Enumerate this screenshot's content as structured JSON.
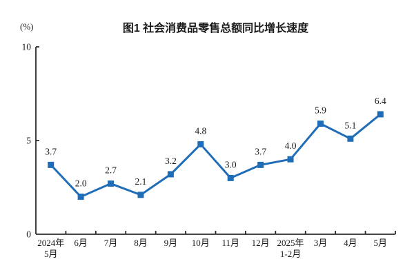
{
  "header": {
    "title": "图1 社会消费品零售总额同比增长速度",
    "unit_label": "(%)"
  },
  "chart_data": {
    "type": "line",
    "title": "图1 社会消费品零售总额同比增长速度",
    "ylabel": "(%)",
    "categories": [
      "2024年\n5月",
      "6月",
      "7月",
      "8月",
      "9月",
      "10月",
      "11月",
      "12月",
      "2025年\n1-2月",
      "3月",
      "4月",
      "5月"
    ],
    "values": [
      3.7,
      2.0,
      2.7,
      2.1,
      3.2,
      4.8,
      3.0,
      3.7,
      4.0,
      5.9,
      5.1,
      6.4
    ],
    "point_labels": [
      "3.7",
      "2.0",
      "2.7",
      "2.1",
      "3.2",
      "4.8",
      "3.0",
      "3.7",
      "4.0",
      "5.9",
      "5.1",
      "6.4"
    ],
    "ylim": [
      0,
      10
    ],
    "yticks": [
      0,
      5,
      10
    ],
    "grid": false,
    "legend": "none",
    "line_color": "#1f6db7",
    "marker": "square",
    "axis_color": "#2b2b2b",
    "text_color": "#1a1a1a"
  }
}
